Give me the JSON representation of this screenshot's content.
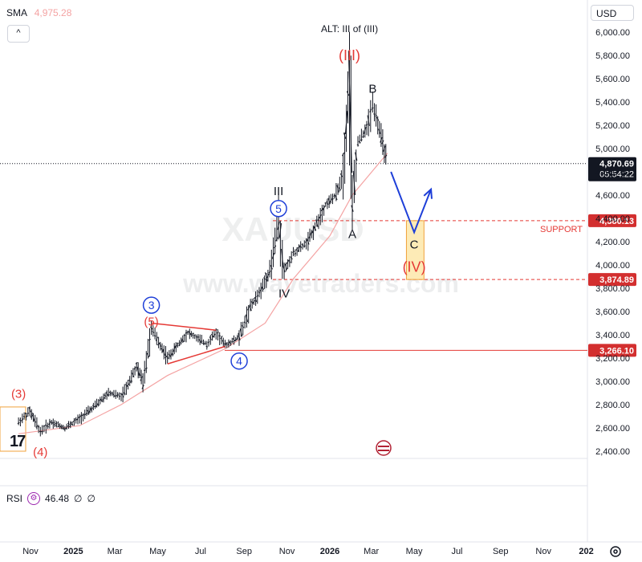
{
  "legend": {
    "sma_label": "SMA",
    "sma_value": "4,975.28",
    "collapse": "^"
  },
  "currency": "USD",
  "rsi": {
    "label": "RSI",
    "value": "46.48",
    "extra1": "∅",
    "extra2": "∅"
  },
  "watermarks": [
    "XAUUSD",
    "www.wavetraders.com"
  ],
  "colors": {
    "red": "#e53935",
    "blue": "#1e3fd8",
    "candle": "#131722",
    "sma": "#f4a3a3",
    "box_fill": "#fde7a9",
    "box_edge": "#f0a23b"
  },
  "chart_data": {
    "type": "candlestick",
    "symbol": "XAUUSD",
    "ylim": [
      2200,
      6200
    ],
    "y_ticks": [
      "6,000.00",
      "5,800.00",
      "5,600.00",
      "5,400.00",
      "5,200.00",
      "5,000.00",
      "4,800.00",
      "4,600.00",
      "4,400.00",
      "4,200.00",
      "4,000.00",
      "3,800.00",
      "3,600.00",
      "3,400.00",
      "3,200.00",
      "3,000.00",
      "2,800.00",
      "2,600.00",
      "2,400.00"
    ],
    "x_ticks": [
      "Nov",
      "2025",
      "Mar",
      "May",
      "Jul",
      "Sep",
      "Nov",
      "2026",
      "Mar",
      "May",
      "Jul",
      "Sep",
      "Nov",
      "202"
    ],
    "price_series": [
      {
        "date": "2024-10-15",
        "close": 2650
      },
      {
        "date": "2024-10-31",
        "close": 2740
      },
      {
        "date": "2024-11-15",
        "close": 2570
      },
      {
        "date": "2024-12-01",
        "close": 2650
      },
      {
        "date": "2024-12-20",
        "close": 2600
      },
      {
        "date": "2025-01-10",
        "close": 2680
      },
      {
        "date": "2025-02-01",
        "close": 2790
      },
      {
        "date": "2025-02-20",
        "close": 2900
      },
      {
        "date": "2025-03-10",
        "close": 2870
      },
      {
        "date": "2025-04-01",
        "close": 3120
      },
      {
        "date": "2025-04-10",
        "close": 3000
      },
      {
        "date": "2025-04-22",
        "close": 3450
      },
      {
        "date": "2025-05-15",
        "close": 3200
      },
      {
        "date": "2025-06-13",
        "close": 3420
      },
      {
        "date": "2025-07-10",
        "close": 3320
      },
      {
        "date": "2025-07-23",
        "close": 3420
      },
      {
        "date": "2025-08-05",
        "close": 3310
      },
      {
        "date": "2025-08-25",
        "close": 3380
      },
      {
        "date": "2025-09-10",
        "close": 3640
      },
      {
        "date": "2025-09-25",
        "close": 3780
      },
      {
        "date": "2025-10-10",
        "close": 4000
      },
      {
        "date": "2025-10-20",
        "close": 4380
      },
      {
        "date": "2025-10-28",
        "close": 3950
      },
      {
        "date": "2025-11-10",
        "close": 4100
      },
      {
        "date": "2025-12-01",
        "close": 4200
      },
      {
        "date": "2025-12-26",
        "close": 4520
      },
      {
        "date": "2026-01-10",
        "close": 4600
      },
      {
        "date": "2026-01-20",
        "close": 4800
      },
      {
        "date": "2026-01-29",
        "close": 5600
      },
      {
        "date": "2026-02-02",
        "close": 4500
      },
      {
        "date": "2026-02-10",
        "close": 5050
      },
      {
        "date": "2026-02-25",
        "close": 5200
      },
      {
        "date": "2026-03-03",
        "close": 5400
      },
      {
        "date": "2026-03-15",
        "close": 5100
      },
      {
        "date": "2026-03-24",
        "close": 4870
      }
    ],
    "sma": [
      {
        "date": "2024-10-15",
        "value": 2550
      },
      {
        "date": "2025-01-10",
        "value": 2620
      },
      {
        "date": "2025-03-10",
        "value": 2800
      },
      {
        "date": "2025-05-15",
        "value": 3050
      },
      {
        "date": "2025-08-05",
        "value": 3280
      },
      {
        "date": "2025-10-01",
        "value": 3500
      },
      {
        "date": "2025-11-10",
        "value": 3880
      },
      {
        "date": "2026-01-01",
        "value": 4250
      },
      {
        "date": "2026-02-02",
        "value": 4600
      },
      {
        "date": "2026-03-24",
        "value": 4960
      }
    ],
    "last_price": "4,870.69",
    "countdown": "05:54:22",
    "levels": [
      {
        "value": 4380.13,
        "label": "4,380.13",
        "style": "dashed",
        "note": "SUPPORT"
      },
      {
        "value": 3874.89,
        "label": "3,874.89",
        "style": "dashed"
      },
      {
        "value": 3266.1,
        "label": "3,266.10",
        "style": "solid"
      }
    ],
    "annotations": [
      {
        "text": "ALT: III of (III)",
        "date": "2026-01-29",
        "price": 6000,
        "color": "#131722"
      },
      {
        "text": "(III)",
        "date": "2026-01-29",
        "price": 5760,
        "color": "#e53935"
      },
      {
        "text": "B",
        "date": "2026-03-03",
        "price": 5480,
        "color": "#131722"
      },
      {
        "text": "III",
        "date": "2025-10-20",
        "price": 4600,
        "color": "#131722"
      },
      {
        "text": "5",
        "date": "2025-10-20",
        "price": 4450,
        "color": "#1e3fd8",
        "circled": true
      },
      {
        "text": "A",
        "date": "2026-02-02",
        "price": 4230,
        "color": "#131722"
      },
      {
        "text": "IV",
        "date": "2025-10-28",
        "price": 3720,
        "color": "#131722"
      },
      {
        "text": "C",
        "date": "2026-05-01",
        "price": 4140,
        "color": "#131722"
      },
      {
        "text": "(IV)",
        "date": "2026-05-01",
        "price": 3940,
        "color": "#e53935"
      },
      {
        "text": "3",
        "date": "2025-04-22",
        "price": 3620,
        "color": "#1e3fd8",
        "circled": true
      },
      {
        "text": "(5)",
        "date": "2025-04-22",
        "price": 3480,
        "color": "#e53935"
      },
      {
        "text": "4",
        "date": "2025-08-25",
        "price": 3140,
        "color": "#1e3fd8",
        "circled": true
      },
      {
        "text": "(3)",
        "date": "2024-10-15",
        "price": 2860,
        "color": "#e53935"
      },
      {
        "text": "(4)",
        "date": "2024-11-15",
        "price": 2360,
        "color": "#e53935"
      }
    ],
    "projection": [
      {
        "date": "2026-03-29",
        "price": 4800
      },
      {
        "date": "2026-05-01",
        "price": 4280
      },
      {
        "date": "2026-05-25",
        "price": 4650
      }
    ],
    "target_zone": {
      "date_start": "2026-04-20",
      "date_end": "2026-05-15",
      "price_low": 3874.89,
      "price_high": 4380.13
    },
    "triangle": [
      {
        "date": "2025-04-22",
        "price": 3500
      },
      {
        "date": "2025-07-23",
        "price": 3440
      },
      {
        "date": "2025-05-15",
        "price": 3150
      },
      {
        "date": "2025-08-05",
        "price": 3300
      }
    ]
  }
}
